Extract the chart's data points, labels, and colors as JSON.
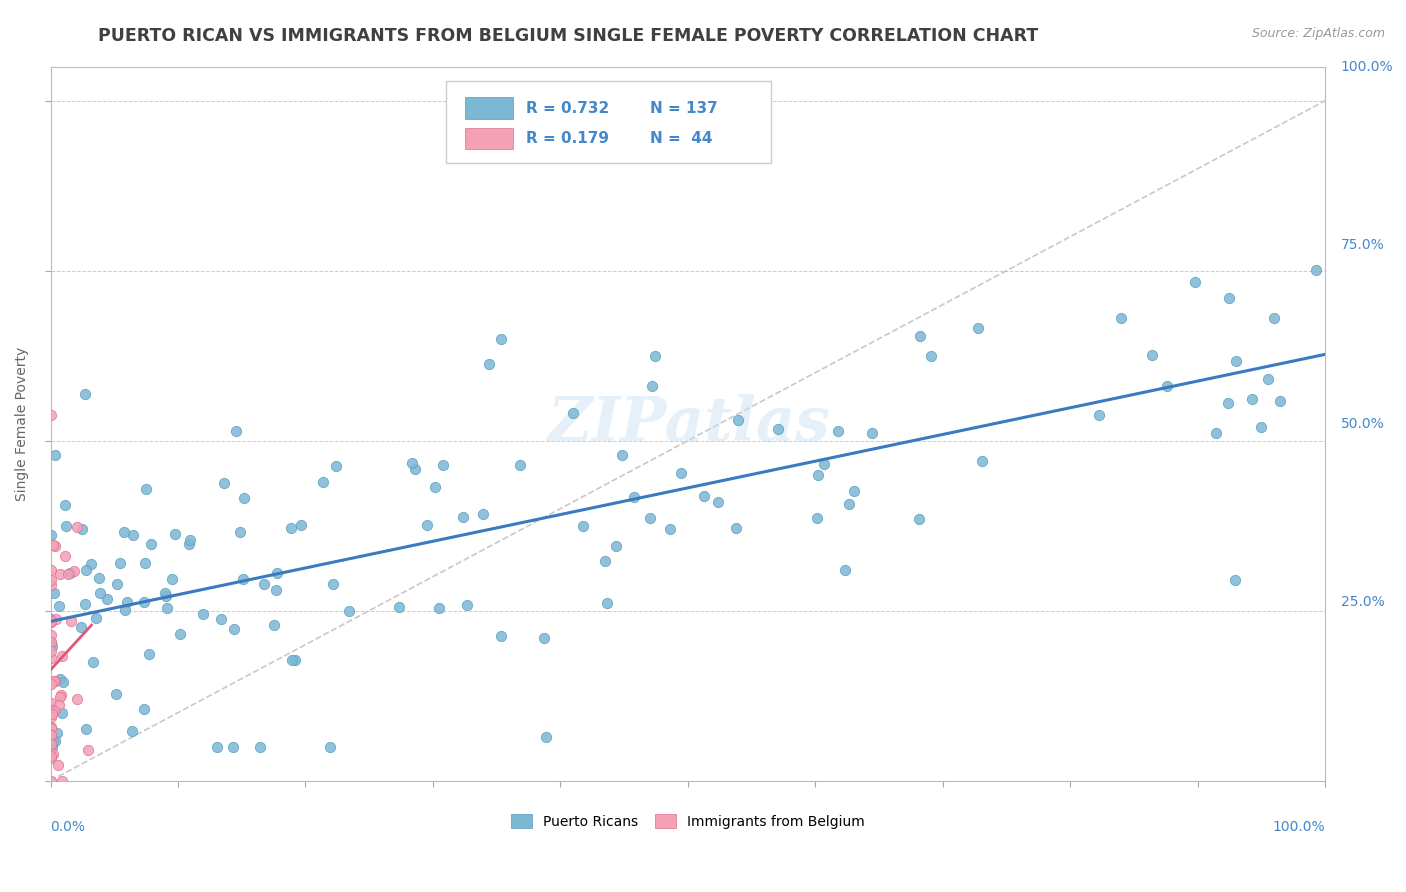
{
  "title": "PUERTO RICAN VS IMMIGRANTS FROM BELGIUM SINGLE FEMALE POVERTY CORRELATION CHART",
  "source": "Source: ZipAtlas.com",
  "ylabel": "Single Female Poverty",
  "watermark": "ZIPatlas",
  "blue_color": "#7bb8d4",
  "pink_color": "#f4a0b5",
  "blue_edge_color": "#5a9cbf",
  "pink_edge_color": "#e07090",
  "blue_line_color": "#3a7abf",
  "pink_line_color": "#e05878",
  "background_color": "#ffffff",
  "grid_color": "#cccccc",
  "title_color": "#404040",
  "axis_label_color": "#4488cc",
  "blue_R": 0.732,
  "pink_R": 0.179,
  "blue_N": 137,
  "pink_N": 44
}
